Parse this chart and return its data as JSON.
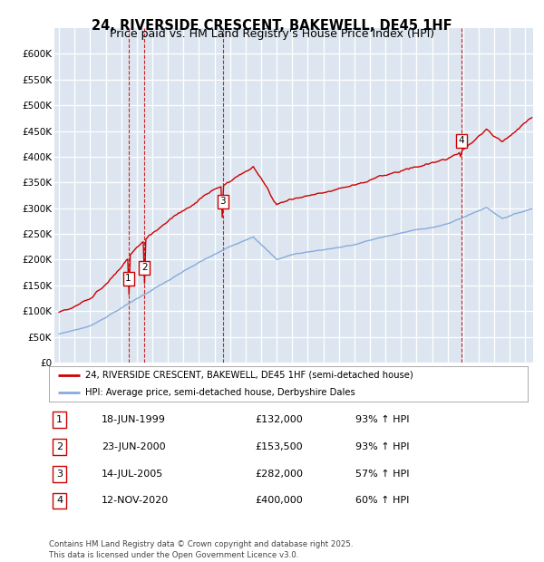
{
  "title": "24, RIVERSIDE CRESCENT, BAKEWELL, DE45 1HF",
  "subtitle": "Price paid vs. HM Land Registry's House Price Index (HPI)",
  "legend_line1": "24, RIVERSIDE CRESCENT, BAKEWELL, DE45 1HF (semi-detached house)",
  "legend_line2": "HPI: Average price, semi-detached house, Derbyshire Dales",
  "footer": "Contains HM Land Registry data © Crown copyright and database right 2025.\nThis data is licensed under the Open Government Licence v3.0.",
  "transactions": [
    {
      "num": 1,
      "date": "18-JUN-1999",
      "x": 1999.46,
      "price": 132000,
      "pct": "93%",
      "dir": "↑"
    },
    {
      "num": 2,
      "date": "23-JUN-2000",
      "x": 2000.48,
      "price": 153500,
      "pct": "93%",
      "dir": "↑"
    },
    {
      "num": 3,
      "date": "14-JUL-2005",
      "x": 2005.54,
      "price": 282000,
      "pct": "57%",
      "dir": "↑"
    },
    {
      "num": 4,
      "date": "12-NOV-2020",
      "x": 2020.87,
      "price": 400000,
      "pct": "60%",
      "dir": "↑"
    }
  ],
  "red_color": "#cc0000",
  "blue_color": "#88aadd",
  "vline_color": "#cc0000",
  "background_color": "#dde6f0",
  "ylim": [
    0,
    650000
  ],
  "xlim_start": 1994.7,
  "xlim_end": 2025.5,
  "yticks": [
    0,
    50000,
    100000,
    150000,
    200000,
    250000,
    300000,
    350000,
    400000,
    450000,
    500000,
    550000,
    600000
  ],
  "ytick_labels": [
    "£0",
    "£50K",
    "£100K",
    "£150K",
    "£200K",
    "£250K",
    "£300K",
    "£350K",
    "£400K",
    "£450K",
    "£500K",
    "£550K",
    "£600K"
  ],
  "xticks": [
    1995,
    1996,
    1997,
    1998,
    1999,
    2000,
    2001,
    2002,
    2003,
    2004,
    2005,
    2006,
    2007,
    2008,
    2009,
    2010,
    2011,
    2012,
    2013,
    2014,
    2015,
    2016,
    2017,
    2018,
    2019,
    2020,
    2021,
    2022,
    2023,
    2024,
    2025
  ]
}
